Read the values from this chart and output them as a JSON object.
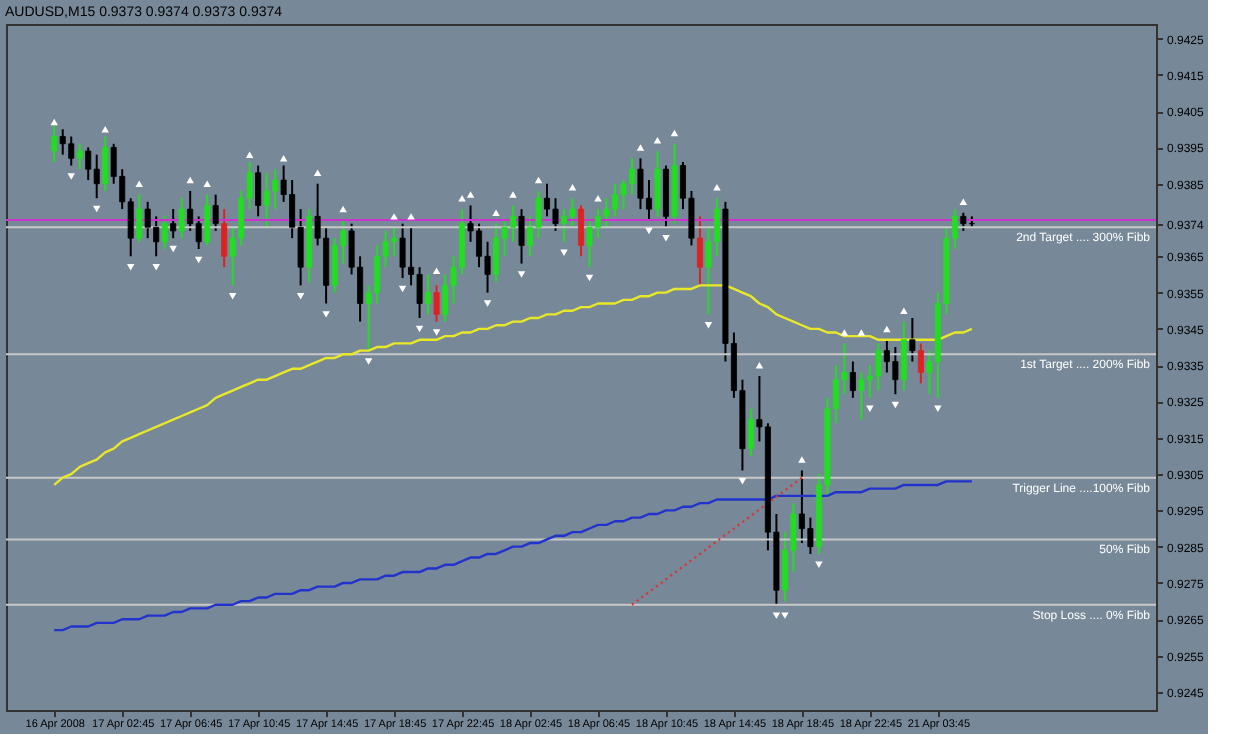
{
  "chart_data": {
    "type": "candlestick",
    "title": "AUDUSD,M15  0.9373 0.9374 0.9373 0.9374",
    "categories": [
      "16 Apr 2008",
      null,
      null,
      null,
      null,
      null,
      null,
      null,
      "17 Apr 02:45",
      null,
      null,
      null,
      null,
      null,
      null,
      null,
      "17 Apr 06:45",
      null,
      null,
      null,
      null,
      null,
      null,
      null,
      "17 Apr 10:45",
      null,
      null,
      null,
      null,
      null,
      null,
      null,
      "17 Apr 14:45",
      null,
      null,
      null,
      null,
      null,
      null,
      null,
      "17 Apr 18:45",
      null,
      null,
      null,
      null,
      null,
      null,
      null,
      "17 Apr 22:45",
      null,
      null,
      null,
      null,
      null,
      null,
      null,
      "18 Apr 02:45",
      null,
      null,
      null,
      null,
      null,
      null,
      null,
      "18 Apr 06:45",
      null,
      null,
      null,
      null,
      null,
      null,
      null,
      "18 Apr 10:45",
      null,
      null,
      null,
      null,
      null,
      null,
      null,
      "18 Apr 14:45",
      null,
      null,
      null,
      null,
      null,
      null,
      null,
      "18 Apr 18:45",
      null,
      null,
      null,
      null,
      null,
      null,
      null,
      "18 Apr 22:45",
      null,
      null,
      null,
      null,
      null,
      null,
      null,
      "21 Apr 03:45",
      null,
      null,
      null,
      null
    ],
    "ohlc": [
      [
        0.9394,
        0.9401,
        0.9391,
        0.9398
      ],
      [
        0.9398,
        0.94,
        0.9393,
        0.9396
      ],
      [
        0.9396,
        0.9398,
        0.939,
        0.9392
      ],
      [
        0.9392,
        0.9396,
        0.9389,
        0.9394
      ],
      [
        0.9394,
        0.9395,
        0.9386,
        0.9389
      ],
      [
        0.9389,
        0.9393,
        0.9381,
        0.9385
      ],
      [
        0.9385,
        0.9398,
        0.9383,
        0.9395
      ],
      [
        0.9395,
        0.9396,
        0.9385,
        0.9387
      ],
      [
        0.9387,
        0.9389,
        0.9378,
        0.938
      ],
      [
        0.938,
        0.9381,
        0.9365,
        0.937
      ],
      [
        0.937,
        0.9382,
        0.9369,
        0.9378
      ],
      [
        0.9378,
        0.938,
        0.937,
        0.9373
      ],
      [
        0.9373,
        0.9376,
        0.9365,
        0.9369
      ],
      [
        0.9369,
        0.9376,
        0.9367,
        0.9374
      ],
      [
        0.9374,
        0.9378,
        0.937,
        0.9372
      ],
      [
        0.9372,
        0.9381,
        0.937,
        0.9378
      ],
      [
        0.9378,
        0.9383,
        0.9372,
        0.9374
      ],
      [
        0.9374,
        0.9376,
        0.9367,
        0.9369
      ],
      [
        0.9369,
        0.9382,
        0.9368,
        0.9379
      ],
      [
        0.9379,
        0.9382,
        0.9372,
        0.9374
      ],
      [
        0.9374,
        0.9378,
        0.9362,
        0.9365
      ],
      [
        0.9365,
        0.9373,
        0.9357,
        0.937
      ],
      [
        0.937,
        0.9383,
        0.9368,
        0.9381
      ],
      [
        0.9381,
        0.9391,
        0.9378,
        0.9388
      ],
      [
        0.9388,
        0.939,
        0.9376,
        0.9379
      ],
      [
        0.9379,
        0.9388,
        0.9373,
        0.9383
      ],
      [
        0.9383,
        0.9389,
        0.9378,
        0.9386
      ],
      [
        0.9386,
        0.939,
        0.938,
        0.9382
      ],
      [
        0.9382,
        0.9386,
        0.937,
        0.9373
      ],
      [
        0.9373,
        0.9378,
        0.9357,
        0.9362
      ],
      [
        0.9362,
        0.9378,
        0.9358,
        0.9376
      ],
      [
        0.9376,
        0.9385,
        0.9368,
        0.937
      ],
      [
        0.937,
        0.9373,
        0.9352,
        0.9357
      ],
      [
        0.9357,
        0.937,
        0.9355,
        0.9368
      ],
      [
        0.9368,
        0.9375,
        0.9363,
        0.9372
      ],
      [
        0.9372,
        0.9374,
        0.936,
        0.9362
      ],
      [
        0.9362,
        0.9365,
        0.9347,
        0.9352
      ],
      [
        0.9352,
        0.9357,
        0.9339,
        0.9355
      ],
      [
        0.9355,
        0.9368,
        0.9352,
        0.9365
      ],
      [
        0.9365,
        0.9372,
        0.9362,
        0.9369
      ],
      [
        0.9369,
        0.9373,
        0.9365,
        0.937
      ],
      [
        0.937,
        0.9374,
        0.9359,
        0.9362
      ],
      [
        0.9362,
        0.9373,
        0.9357,
        0.936
      ],
      [
        0.936,
        0.9362,
        0.9348,
        0.9352
      ],
      [
        0.9352,
        0.936,
        0.9349,
        0.9355
      ],
      [
        0.9355,
        0.9357,
        0.9347,
        0.9349
      ],
      [
        0.9349,
        0.936,
        0.9347,
        0.9357
      ],
      [
        0.9357,
        0.9365,
        0.9352,
        0.9362
      ],
      [
        0.9362,
        0.9378,
        0.936,
        0.9374
      ],
      [
        0.9374,
        0.9379,
        0.9369,
        0.9372
      ],
      [
        0.9372,
        0.9374,
        0.9362,
        0.9365
      ],
      [
        0.9365,
        0.9369,
        0.9355,
        0.936
      ],
      [
        0.936,
        0.9374,
        0.9358,
        0.937
      ],
      [
        0.937,
        0.9375,
        0.9365,
        0.9373
      ],
      [
        0.9373,
        0.9379,
        0.9369,
        0.9376
      ],
      [
        0.9376,
        0.9378,
        0.9363,
        0.9368
      ],
      [
        0.9368,
        0.9376,
        0.9365,
        0.9373
      ],
      [
        0.9373,
        0.9383,
        0.937,
        0.9381
      ],
      [
        0.9381,
        0.9385,
        0.9376,
        0.9378
      ],
      [
        0.9378,
        0.9381,
        0.9372,
        0.9374
      ],
      [
        0.9374,
        0.9378,
        0.9369,
        0.9376
      ],
      [
        0.9376,
        0.9381,
        0.9373,
        0.9378
      ],
      [
        0.9378,
        0.9379,
        0.9365,
        0.9368
      ],
      [
        0.9368,
        0.9375,
        0.9362,
        0.9373
      ],
      [
        0.9373,
        0.9378,
        0.937,
        0.9376
      ],
      [
        0.9376,
        0.9381,
        0.9373,
        0.9378
      ],
      [
        0.9378,
        0.9385,
        0.9376,
        0.9382
      ],
      [
        0.9382,
        0.9386,
        0.9378,
        0.9385
      ],
      [
        0.9385,
        0.9392,
        0.9382,
        0.9389
      ],
      [
        0.9389,
        0.9392,
        0.9378,
        0.9381
      ],
      [
        0.9381,
        0.9386,
        0.9375,
        0.9378
      ],
      [
        0.9378,
        0.9394,
        0.9376,
        0.9389
      ],
      [
        0.9389,
        0.939,
        0.9373,
        0.9376
      ],
      [
        0.9376,
        0.9396,
        0.9374,
        0.939
      ],
      [
        0.939,
        0.9391,
        0.9378,
        0.9381
      ],
      [
        0.9381,
        0.9383,
        0.9368,
        0.937
      ],
      [
        0.937,
        0.9376,
        0.9357,
        0.9362
      ],
      [
        0.9362,
        0.9373,
        0.9349,
        0.9369
      ],
      [
        0.9369,
        0.9381,
        0.9365,
        0.9378
      ],
      [
        0.9378,
        0.938,
        0.9336,
        0.9341
      ],
      [
        0.9341,
        0.9344,
        0.9326,
        0.9328
      ],
      [
        0.9328,
        0.9331,
        0.9306,
        0.9312
      ],
      [
        0.9312,
        0.9323,
        0.931,
        0.932
      ],
      [
        0.932,
        0.9332,
        0.9314,
        0.9318
      ],
      [
        0.9318,
        0.9319,
        0.9284,
        0.9289
      ],
      [
        0.9289,
        0.9294,
        0.9269,
        0.9273
      ],
      [
        0.9273,
        0.9289,
        0.927,
        0.9284
      ],
      [
        0.9284,
        0.9297,
        0.9278,
        0.9294
      ],
      [
        0.9294,
        0.9306,
        0.9286,
        0.929
      ],
      [
        0.929,
        0.9293,
        0.9283,
        0.9285
      ],
      [
        0.9285,
        0.9305,
        0.9283,
        0.9302
      ],
      [
        0.9302,
        0.9326,
        0.9299,
        0.9323
      ],
      [
        0.9323,
        0.9335,
        0.9319,
        0.9331
      ],
      [
        0.9331,
        0.9341,
        0.9327,
        0.9333
      ],
      [
        0.9333,
        0.9336,
        0.9326,
        0.9328
      ],
      [
        0.9328,
        0.9333,
        0.932,
        0.9331
      ],
      [
        0.9331,
        0.9335,
        0.9326,
        0.9332
      ],
      [
        0.9332,
        0.9341,
        0.9328,
        0.9339
      ],
      [
        0.9339,
        0.9342,
        0.9333,
        0.9336
      ],
      [
        0.9336,
        0.934,
        0.9327,
        0.9331
      ],
      [
        0.9331,
        0.9347,
        0.9328,
        0.9342
      ],
      [
        0.9342,
        0.9348,
        0.9336,
        0.9339
      ],
      [
        0.9339,
        0.9341,
        0.933,
        0.9333
      ],
      [
        0.9333,
        0.9339,
        0.9327,
        0.9336
      ],
      [
        0.9336,
        0.9355,
        0.9326,
        0.9352
      ],
      [
        0.9352,
        0.9373,
        0.9349,
        0.937
      ],
      [
        0.937,
        0.9378,
        0.9367,
        0.9376
      ],
      [
        0.9376,
        0.9377,
        0.9372,
        0.9374
      ],
      [
        0.9374,
        0.9376,
        0.9373,
        0.9374
      ]
    ],
    "colors": [
      "#22dd22",
      "#000000",
      "#000000",
      "#22dd22",
      "#000000",
      "#000000",
      "#22dd22",
      "#000000",
      "#000000",
      "#000000",
      "#22dd22",
      "#000000",
      "#000000",
      "#22dd22",
      "#000000",
      "#22dd22",
      "#000000",
      "#000000",
      "#22dd22",
      "#000000",
      "#dd2222",
      "#22dd22",
      "#22dd22",
      "#22dd22",
      "#000000",
      "#22dd22",
      "#22dd22",
      "#000000",
      "#000000",
      "#000000",
      "#22dd22",
      "#000000",
      "#000000",
      "#22dd22",
      "#22dd22",
      "#000000",
      "#000000",
      "#22dd22",
      "#22dd22",
      "#22dd22",
      "#22dd22",
      "#000000",
      "#000000",
      "#000000",
      "#22dd22",
      "#dd2222",
      "#22dd22",
      "#22dd22",
      "#22dd22",
      "#000000",
      "#000000",
      "#000000",
      "#22dd22",
      "#22dd22",
      "#22dd22",
      "#000000",
      "#22dd22",
      "#22dd22",
      "#000000",
      "#000000",
      "#22dd22",
      "#22dd22",
      "#dd2222",
      "#22dd22",
      "#22dd22",
      "#22dd22",
      "#22dd22",
      "#22dd22",
      "#22dd22",
      "#000000",
      "#000000",
      "#22dd22",
      "#000000",
      "#22dd22",
      "#000000",
      "#000000",
      "#dd2222",
      "#22dd22",
      "#22dd22",
      "#000000",
      "#000000",
      "#000000",
      "#22dd22",
      "#000000",
      "#000000",
      "#000000",
      "#22dd22",
      "#22dd22",
      "#000000",
      "#000000",
      "#22dd22",
      "#22dd22",
      "#22dd22",
      "#22dd22",
      "#000000",
      "#22dd22",
      "#22dd22",
      "#22dd22",
      "#000000",
      "#000000",
      "#22dd22",
      "#000000",
      "#dd2222",
      "#22dd22",
      "#22dd22",
      "#22dd22",
      "#22dd22",
      "#000000",
      "#000000"
    ],
    "series": [
      {
        "type": "line",
        "color": "#e8e82a",
        "values": [
          0.9302,
          0.9304,
          0.9305,
          0.9307,
          0.9308,
          0.9309,
          0.9311,
          0.9312,
          0.9314,
          0.9315,
          0.9316,
          0.9317,
          0.9318,
          0.9319,
          0.932,
          0.9321,
          0.9322,
          0.9323,
          0.9324,
          0.9326,
          0.9327,
          0.9328,
          0.9329,
          0.933,
          0.9331,
          0.9331,
          0.9332,
          0.9333,
          0.9334,
          0.9334,
          0.9335,
          0.9336,
          0.9337,
          0.9337,
          0.9338,
          0.9338,
          0.9339,
          0.9339,
          0.934,
          0.934,
          0.9341,
          0.9341,
          0.9341,
          0.9342,
          0.9342,
          0.9342,
          0.9343,
          0.9343,
          0.9344,
          0.9344,
          0.9345,
          0.9345,
          0.9346,
          0.9346,
          0.9347,
          0.9347,
          0.9348,
          0.9348,
          0.9349,
          0.9349,
          0.935,
          0.935,
          0.9351,
          0.9351,
          0.9352,
          0.9352,
          0.9352,
          0.9353,
          0.9353,
          0.9354,
          0.9354,
          0.9355,
          0.9355,
          0.9356,
          0.9356,
          0.9356,
          0.9357,
          0.9357,
          0.9357,
          0.9357,
          0.9356,
          0.9355,
          0.9354,
          0.9352,
          0.9351,
          0.9349,
          0.9348,
          0.9347,
          0.9346,
          0.9345,
          0.9345,
          0.9344,
          0.9344,
          0.9343,
          0.9343,
          0.9343,
          0.9343,
          0.9342,
          0.9342,
          0.9342,
          0.9342,
          0.9342,
          0.9342,
          0.9342,
          0.9342,
          0.9343,
          0.9344,
          0.9344,
          0.9345
        ]
      },
      {
        "type": "line",
        "color": "#2233cc",
        "values": [
          0.9262,
          0.9262,
          0.9263,
          0.9263,
          0.9263,
          0.9264,
          0.9264,
          0.9264,
          0.9265,
          0.9265,
          0.9265,
          0.9266,
          0.9266,
          0.9266,
          0.9267,
          0.9267,
          0.9268,
          0.9268,
          0.9268,
          0.9269,
          0.9269,
          0.9269,
          0.927,
          0.927,
          0.9271,
          0.9271,
          0.9272,
          0.9272,
          0.9272,
          0.9273,
          0.9273,
          0.9274,
          0.9274,
          0.9274,
          0.9275,
          0.9275,
          0.9276,
          0.9276,
          0.9276,
          0.9277,
          0.9277,
          0.9278,
          0.9278,
          0.9278,
          0.9279,
          0.9279,
          0.928,
          0.928,
          0.9281,
          0.9282,
          0.9282,
          0.9283,
          0.9283,
          0.9284,
          0.9285,
          0.9285,
          0.9286,
          0.9286,
          0.9287,
          0.9288,
          0.9288,
          0.9289,
          0.9289,
          0.929,
          0.9291,
          0.9291,
          0.9292,
          0.9292,
          0.9293,
          0.9293,
          0.9294,
          0.9294,
          0.9295,
          0.9295,
          0.9296,
          0.9296,
          0.9297,
          0.9297,
          0.9298,
          0.9298,
          0.9298,
          0.9298,
          0.9298,
          0.9298,
          0.9298,
          0.9299,
          0.9299,
          0.9299,
          0.9299,
          0.9299,
          0.9299,
          0.9299,
          0.93,
          0.93,
          0.93,
          0.93,
          0.9301,
          0.9301,
          0.9301,
          0.9301,
          0.9302,
          0.9302,
          0.9302,
          0.9302,
          0.9302,
          0.9303,
          0.9303,
          0.9303,
          0.9303
        ]
      },
      {
        "type": "line",
        "color": "#dd3333",
        "line_style": "dotted",
        "values": [
          null,
          null,
          null,
          null,
          null,
          null,
          null,
          null,
          null,
          null,
          null,
          null,
          null,
          null,
          null,
          null,
          null,
          null,
          null,
          null,
          null,
          null,
          null,
          null,
          null,
          null,
          null,
          null,
          null,
          null,
          null,
          null,
          null,
          null,
          null,
          null,
          null,
          null,
          null,
          null,
          null,
          null,
          null,
          null,
          null,
          null,
          null,
          null,
          null,
          null,
          null,
          null,
          null,
          null,
          null,
          null,
          null,
          null,
          null,
          null,
          null,
          null,
          null,
          null,
          null,
          null,
          null,
          null,
          0.9269,
          null,
          null,
          null,
          null,
          null,
          null,
          null,
          null,
          null,
          null,
          null,
          null,
          null,
          null,
          null,
          null,
          null,
          null,
          null,
          0.9304,
          null,
          null,
          null,
          null,
          null,
          null,
          null,
          null,
          null,
          null,
          null,
          null,
          null,
          null,
          null,
          null,
          null,
          null,
          null,
          null
        ]
      },
      {
        "type": "scatter",
        "color": "#ffffff",
        "marker": "triangle",
        "values": [
          0.9402,
          null,
          null,
          null,
          null,
          null,
          0.94,
          null,
          null,
          null,
          0.9385,
          null,
          null,
          null,
          null,
          null,
          0.9386,
          null,
          0.9385,
          null,
          null,
          null,
          null,
          0.9393,
          null,
          null,
          null,
          0.9392,
          null,
          null,
          null,
          0.9388,
          null,
          null,
          0.9378,
          null,
          null,
          null,
          null,
          null,
          0.9376,
          null,
          0.9376,
          null,
          null,
          0.9361,
          null,
          null,
          0.9381,
          0.9382,
          null,
          null,
          0.9377,
          null,
          0.9382,
          null,
          null,
          0.9386,
          null,
          null,
          null,
          0.9384,
          null,
          null,
          0.9381,
          null,
          null,
          null,
          null,
          0.9395,
          null,
          0.9397,
          null,
          0.9399,
          null,
          null,
          null,
          null,
          0.9384,
          null,
          null,
          null,
          null,
          0.9335,
          null,
          null,
          null,
          null,
          0.9309,
          null,
          null,
          null,
          null,
          0.9344,
          null,
          0.9344,
          null,
          null,
          0.9345,
          null,
          0.935,
          null,
          null,
          null,
          null,
          null,
          null,
          0.938,
          null
        ]
      },
      {
        "type": "scatter",
        "color": "#ffffff",
        "marker": "triangle",
        "values": [
          null,
          null,
          0.9387,
          null,
          null,
          0.9378,
          null,
          null,
          null,
          0.9362,
          null,
          null,
          0.9362,
          null,
          0.9367,
          null,
          null,
          0.9364,
          null,
          null,
          null,
          0.9354,
          null,
          null,
          null,
          null,
          null,
          null,
          null,
          0.9354,
          null,
          null,
          0.9349,
          null,
          null,
          null,
          null,
          0.9336,
          null,
          null,
          null,
          0.9356,
          null,
          0.9345,
          null,
          0.9344,
          null,
          null,
          null,
          null,
          null,
          0.9352,
          null,
          null,
          null,
          0.936,
          null,
          null,
          null,
          null,
          0.9366,
          null,
          null,
          0.9359,
          null,
          null,
          null,
          null,
          null,
          null,
          0.9372,
          null,
          0.937,
          null,
          null,
          null,
          null,
          0.9346,
          null,
          null,
          null,
          0.9303,
          null,
          null,
          null,
          0.9266,
          0.9266,
          null,
          null,
          null,
          0.928,
          null,
          null,
          null,
          null,
          null,
          0.9323,
          null,
          null,
          0.9324,
          null,
          null,
          null,
          null,
          0.9323,
          null,
          null,
          null,
          null
        ]
      }
    ],
    "ylim": [
      0.924,
      0.9429
    ],
    "yticks": [
      0.9245,
      0.9255,
      0.9265,
      0.9275,
      0.9285,
      0.9295,
      0.9305,
      0.9315,
      0.9325,
      0.9335,
      0.9345,
      0.9355,
      0.9365,
      0.9374,
      0.9385,
      0.9395,
      0.9405,
      0.9415,
      0.9425
    ],
    "ref_lines": [
      {
        "axis": "y",
        "value": 0.9375,
        "color": "#cc33cc"
      },
      {
        "axis": "y",
        "value": 0.9373,
        "label": "2nd Target .... 300% Fibb",
        "color": "#c8c8c8"
      },
      {
        "axis": "y",
        "value": 0.9338,
        "label": "1st Target .... 200% Fibb",
        "color": "#c8c8c8"
      },
      {
        "axis": "y",
        "value": 0.9304,
        "label": "Trigger Line ....100% Fibb",
        "color": "#c8c8c8"
      },
      {
        "axis": "y",
        "value": 0.9287,
        "label": "50% Fibb",
        "color": "#c8c8c8"
      },
      {
        "axis": "y",
        "value": 0.9269,
        "label": "Stop Loss .... 0% Fibb",
        "color": "#c8c8c8"
      }
    ],
    "grid": false
  }
}
